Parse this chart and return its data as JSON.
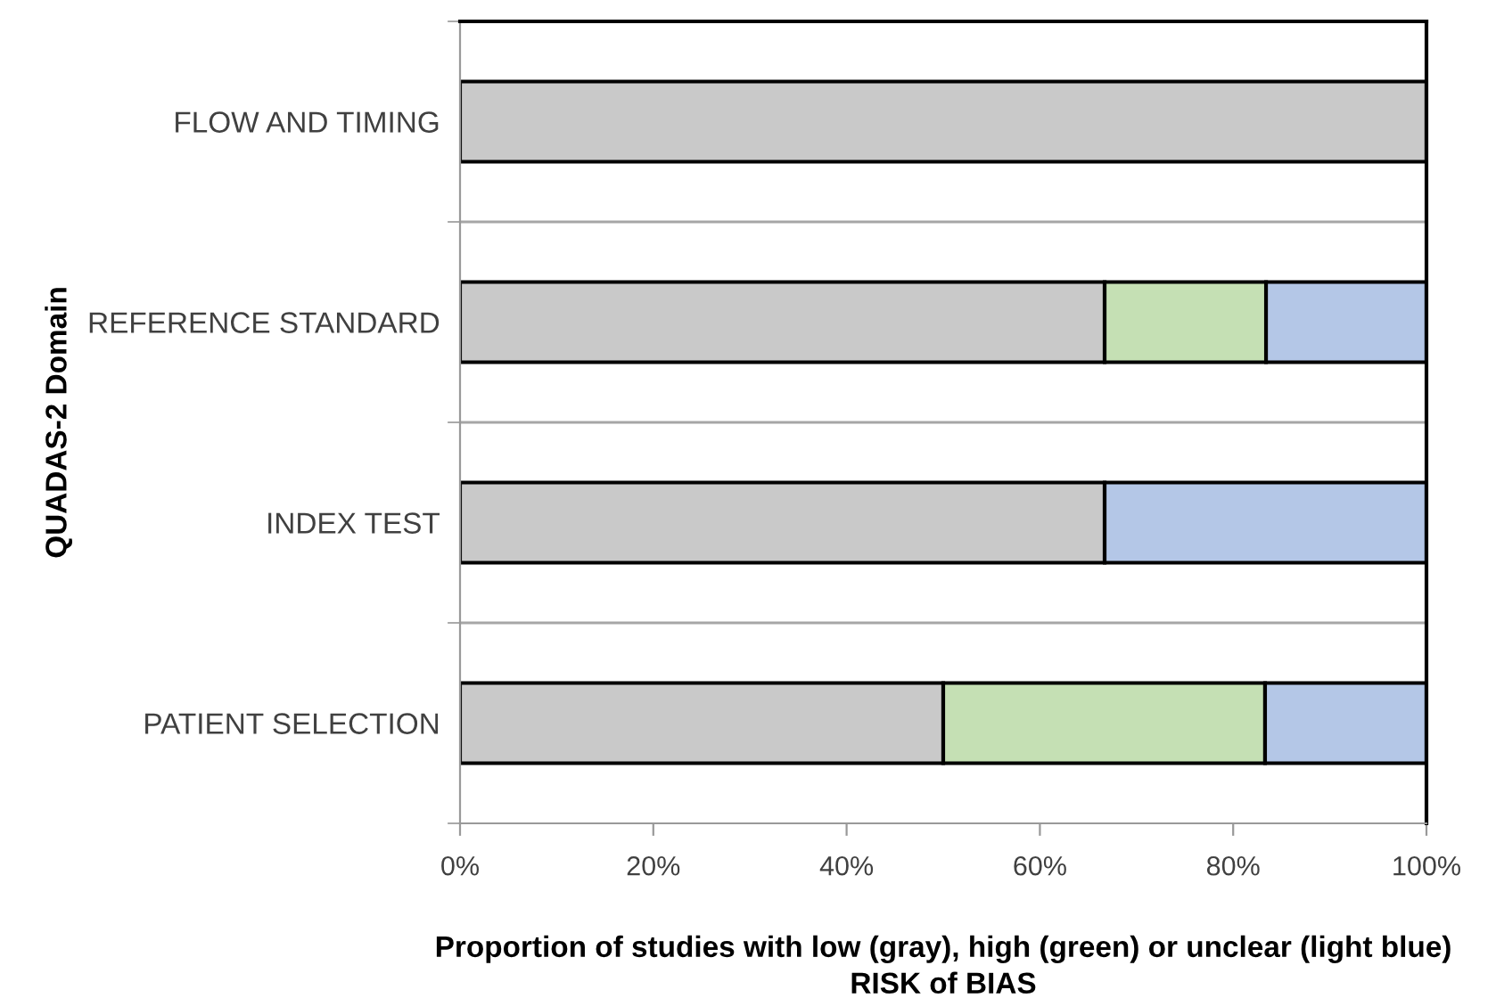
{
  "chart_data": {
    "type": "bar",
    "orientation": "horizontal",
    "stacked": true,
    "categories": [
      "FLOW AND TIMING",
      "REFERENCE STANDARD",
      "INDEX TEST",
      "PATIENT SELECTION"
    ],
    "series": [
      {
        "color": "#c9c9c9",
        "values": [
          100,
          66.7,
          66.7,
          50
        ]
      },
      {
        "color": "#c5e0b4",
        "values": [
          null,
          16.7,
          null,
          33.3
        ]
      },
      {
        "color": "#b4c7e7",
        "values": [
          null,
          16.6,
          33.3,
          16.7
        ]
      }
    ],
    "xlim": [
      0,
      100
    ],
    "xticks": [
      {
        "value": 0,
        "label": "0%"
      },
      {
        "value": 20,
        "label": "20%"
      },
      {
        "value": 40,
        "label": "40%"
      },
      {
        "value": 60,
        "label": "60%"
      },
      {
        "value": 80,
        "label": "80%"
      },
      {
        "value": 100,
        "label": "100%"
      }
    ],
    "xlabel": "Proportion of studies with low (gray), high (green) or unclear (light blue)\nRISK of BIAS",
    "ylabel": "QUADAS-2 Domain",
    "grid": "y",
    "legend": false
  }
}
